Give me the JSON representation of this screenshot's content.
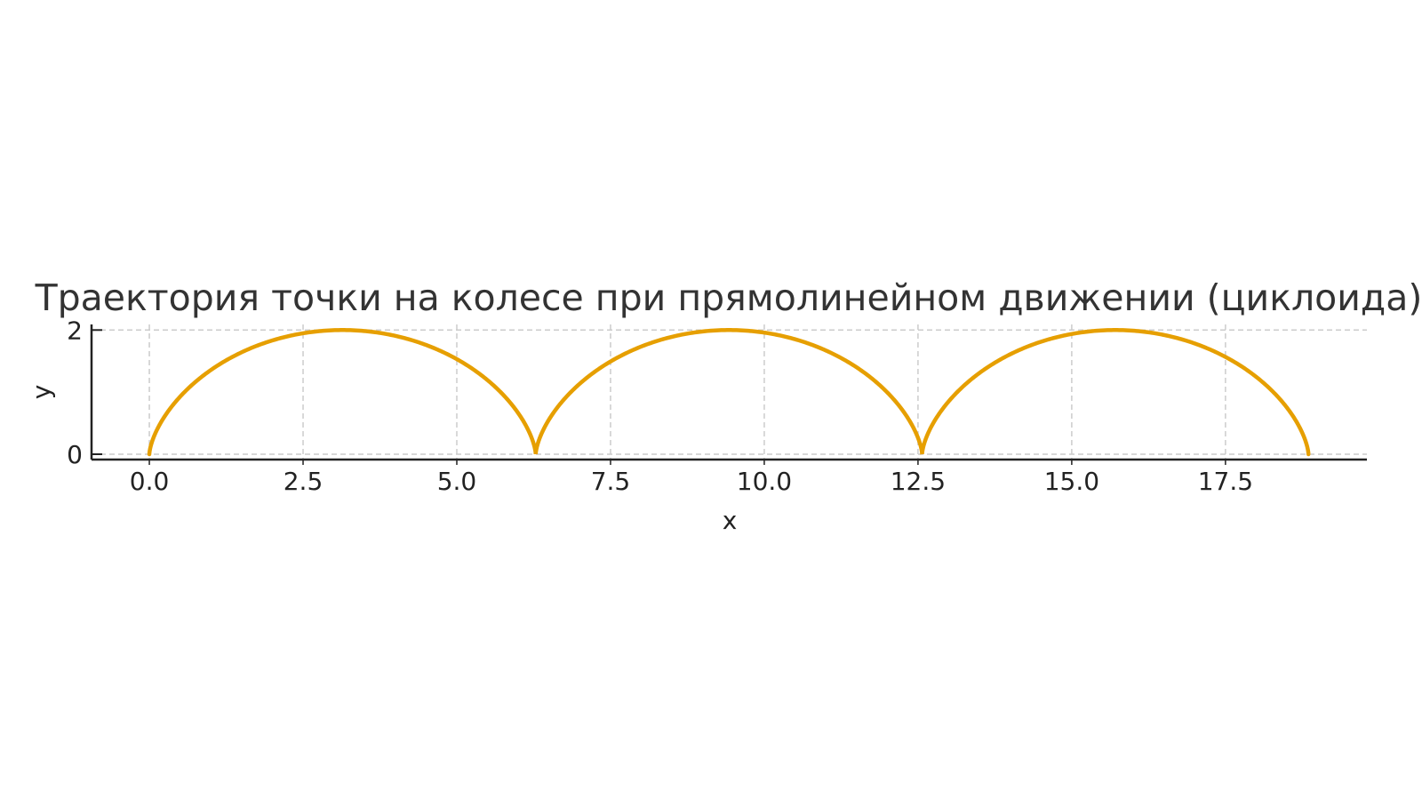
{
  "chart_data": {
    "type": "line",
    "title": "Траектория точки на колесе при прямолинейном движении (циклоида)",
    "xlabel": "x",
    "ylabel": "y",
    "xlim": [
      -0.94,
      19.8
    ],
    "ylim": [
      -0.086,
      2.09
    ],
    "xticks": [
      0,
      2.5,
      5,
      7.5,
      10,
      12.5,
      15,
      17.5
    ],
    "xtick_labels": [
      "0.0",
      "2.5",
      "5.0",
      "7.5",
      "10.0",
      "12.5",
      "15.0",
      "17.5"
    ],
    "yticks": [
      0,
      2
    ],
    "ytick_labels": [
      "0",
      "2"
    ],
    "grid": true,
    "aspect": "equal",
    "series": [
      {
        "equation": "x = t - sin(t), y = 1 - cos(t)",
        "t_range": [
          0,
          18.85
        ],
        "color": "#E69F00"
      }
    ]
  }
}
